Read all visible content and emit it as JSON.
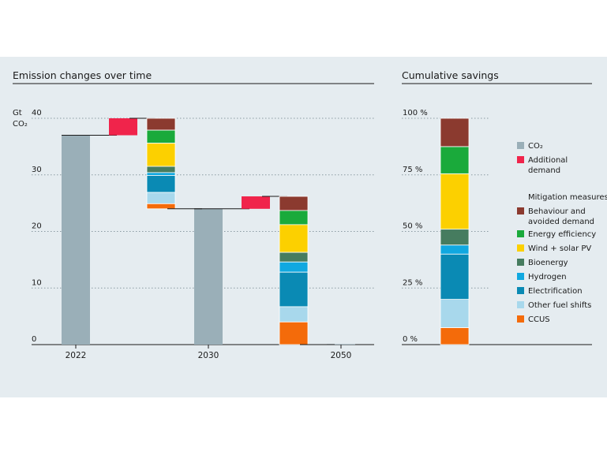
{
  "chart_data": [
    {
      "type": "bar",
      "subtype": "waterfall",
      "title": "Emission changes over time",
      "ylabel_line1": "Gt",
      "ylabel_line2": "CO₂",
      "ylim": [
        0,
        40
      ],
      "yticks": [
        0,
        10,
        20,
        30,
        40
      ],
      "categories": [
        "2022",
        "2030",
        "2050"
      ],
      "totals": [
        {
          "category": "2022",
          "value": 37.0
        },
        {
          "category": "2030",
          "value": 24.0
        },
        {
          "category": "2050",
          "value": 0.1
        }
      ],
      "additional_demand": [
        {
          "period": "2022-2030",
          "from": 37.0,
          "to": 40.0
        },
        {
          "period": "2030-2050",
          "from": 24.0,
          "to": 26.2
        }
      ],
      "reductions": [
        {
          "period": "2022-2030",
          "segments": [
            {
              "measure": "Behaviour and avoided demand",
              "from": 40.0,
              "to": 37.9
            },
            {
              "measure": "Energy efficiency",
              "from": 37.9,
              "to": 35.6
            },
            {
              "measure": "Wind + solar PV",
              "from": 35.6,
              "to": 31.5
            },
            {
              "measure": "Bioenergy",
              "from": 31.5,
              "to": 30.4
            },
            {
              "measure": "Hydrogen",
              "from": 30.4,
              "to": 29.9
            },
            {
              "measure": "Electrification",
              "from": 29.9,
              "to": 26.9
            },
            {
              "measure": "Other fuel shifts",
              "from": 26.9,
              "to": 24.9
            },
            {
              "measure": "CCUS",
              "from": 24.9,
              "to": 24.0
            }
          ]
        },
        {
          "period": "2030-2050",
          "segments": [
            {
              "measure": "Behaviour and avoided demand",
              "from": 26.2,
              "to": 23.7
            },
            {
              "measure": "Energy efficiency",
              "from": 23.7,
              "to": 21.2
            },
            {
              "measure": "Wind + solar PV",
              "from": 21.2,
              "to": 16.3
            },
            {
              "measure": "Bioenergy",
              "from": 16.3,
              "to": 14.6
            },
            {
              "measure": "Hydrogen",
              "from": 14.6,
              "to": 12.8
            },
            {
              "measure": "Electrification",
              "from": 12.8,
              "to": 6.7
            },
            {
              "measure": "Other fuel shifts",
              "from": 6.7,
              "to": 4.0
            },
            {
              "measure": "CCUS",
              "from": 4.0,
              "to": 0.0
            }
          ]
        }
      ]
    },
    {
      "type": "bar",
      "subtype": "stacked",
      "title": "Cumulative savings",
      "ylim": [
        0,
        100
      ],
      "yticks": [
        0,
        25,
        50,
        75,
        100
      ],
      "ytick_labels": [
        "0 %",
        "25 %",
        "50 %",
        "75 %",
        "100 %"
      ],
      "segments": [
        {
          "measure": "CCUS",
          "from": 0,
          "to": 7.5
        },
        {
          "measure": "Other fuel shifts",
          "from": 7.5,
          "to": 20
        },
        {
          "measure": "Electrification",
          "from": 20,
          "to": 40
        },
        {
          "measure": "Hydrogen",
          "from": 40,
          "to": 44
        },
        {
          "measure": "Bioenergy",
          "from": 44,
          "to": 51
        },
        {
          "measure": "Wind + solar PV",
          "from": 51,
          "to": 75.5
        },
        {
          "measure": "Energy efficiency",
          "from": 75.5,
          "to": 87.5
        },
        {
          "measure": "Behaviour and avoided demand",
          "from": 87.5,
          "to": 100
        }
      ]
    }
  ],
  "colors": {
    "CO₂": "#9aafb8",
    "Additional demand": "#f0244b",
    "Behaviour and avoided demand": "#8b3a2f",
    "Energy efficiency": "#1aaa3b",
    "Wind + solar PV": "#fcd000",
    "Bioenergy": "#467c5f",
    "Hydrogen": "#10a8e0",
    "Electrification": "#0a8ab4",
    "Other fuel shifts": "#a8d8ec",
    "CCUS": "#f46b0a"
  },
  "legend": {
    "co2": "CO₂",
    "additional_line1": "Additional",
    "additional_line2": "demand",
    "measures_header": "Mitigation measures",
    "items": [
      {
        "key": "Behaviour and avoided demand",
        "line1": "Behaviour and",
        "line2": "avoided demand"
      },
      {
        "key": "Energy efficiency",
        "line1": "Energy efficiency"
      },
      {
        "key": "Wind + solar PV",
        "line1": "Wind + solar PV"
      },
      {
        "key": "Bioenergy",
        "line1": "Bioenergy"
      },
      {
        "key": "Hydrogen",
        "line1": "Hydrogen"
      },
      {
        "key": "Electrification",
        "line1": "Electrification"
      },
      {
        "key": "Other fuel shifts",
        "line1": "Other fuel shifts"
      },
      {
        "key": "CCUS",
        "line1": "CCUS"
      }
    ]
  }
}
